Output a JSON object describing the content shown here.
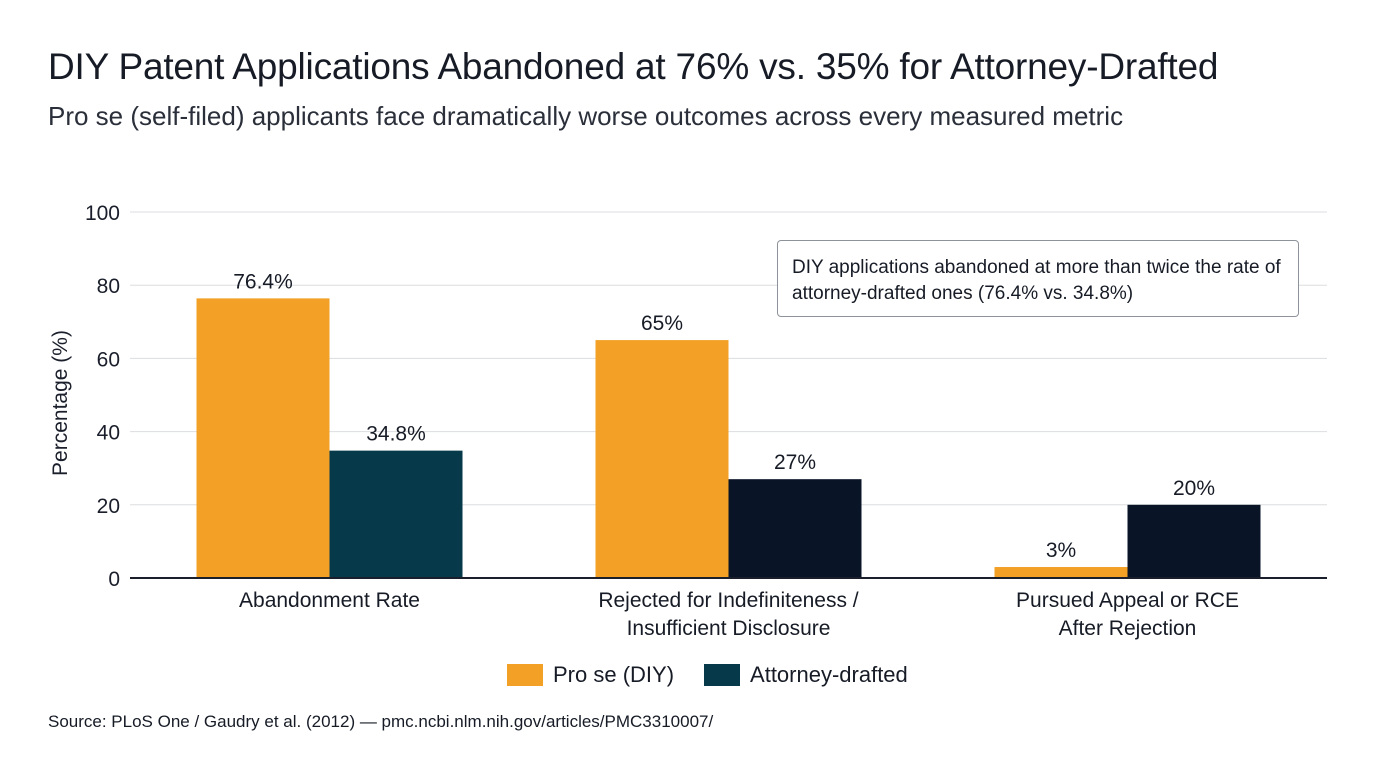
{
  "title": "DIY Patent Applications Abandoned at 76% vs. 35% for Attorney-Drafted",
  "subtitle": "Pro se (self-filed) applicants face dramatically worse outcomes across every measured metric",
  "annotation": "DIY applications abandoned at more than twice the rate of attorney-drafted ones (76.4% vs. 34.8%)",
  "source": "Source: PLoS One / Gaudry et al. (2012) — pmc.ncbi.nlm.nih.gov/articles/PMC3310007/",
  "colors": {
    "pro_se": "#f2a126",
    "attorney_1": "#063a4b",
    "attorney_2": "#0a1427",
    "grid": "#dcdde0",
    "axis": "#1a1f2b"
  },
  "chart_data": {
    "type": "bar",
    "categories": [
      [
        "Abandonment Rate"
      ],
      [
        "Rejected for Indefiniteness /",
        "Insufficient Disclosure"
      ],
      [
        "Pursued Appeal or RCE",
        "After Rejection"
      ]
    ],
    "series": [
      {
        "name": "Pro se (DIY)",
        "values": [
          76.4,
          65,
          3
        ],
        "labels": [
          "76.4%",
          "65%",
          "3%"
        ],
        "color": "#f2a126"
      },
      {
        "name": "Attorney-drafted",
        "values": [
          34.8,
          27,
          20
        ],
        "labels": [
          "34.8%",
          "27%",
          "20%"
        ],
        "color": "#063a4b",
        "colors": [
          "#063a4b",
          "#0a1427",
          "#0a1427"
        ]
      }
    ],
    "ylabel": "Percentage (%)",
    "xlabel": "",
    "ylim": [
      0,
      100
    ],
    "yticks": [
      0,
      20,
      40,
      60,
      80,
      100
    ],
    "grid": true,
    "legend": "bottom-center"
  }
}
